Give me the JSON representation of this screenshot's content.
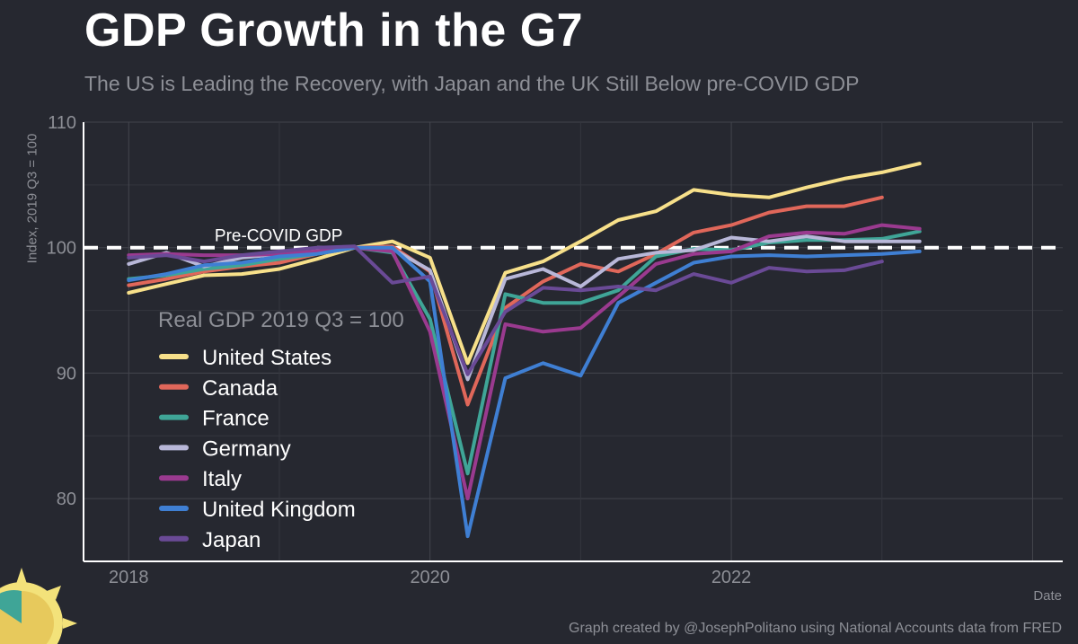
{
  "header": {
    "title": "GDP Growth in the G7",
    "subtitle": "The US is Leading the Recovery, with Japan and the UK Still Below pre-COVID GDP"
  },
  "footer": {
    "caption": "Graph created by @JosephPolitano using National Accounts data from FRED"
  },
  "chart_data": {
    "type": "line",
    "title": "GDP Growth in the G7",
    "subtitle": "The US is Leading the Recovery, with Japan and the UK Still Below pre-COVID GDP",
    "xlabel": "Date",
    "ylabel": "Index, 2019 Q3 = 100",
    "xlim": [
      2017.7,
      2024.2
    ],
    "ylim": [
      75,
      110
    ],
    "x_ticks": [
      2018,
      2020,
      2022
    ],
    "y_ticks": [
      80,
      90,
      100,
      110
    ],
    "grid": true,
    "legend_title": "Real GDP 2019 Q3 = 100",
    "legend_position": "left-middle",
    "reference_line": {
      "y": 100,
      "label": "Pre-COVID GDP",
      "style": "dashed",
      "color": "#ffffff"
    },
    "x": [
      2018.0,
      2018.25,
      2018.5,
      2018.75,
      2019.0,
      2019.25,
      2019.5,
      2019.75,
      2020.0,
      2020.25,
      2020.5,
      2020.75,
      2021.0,
      2021.25,
      2021.5,
      2021.75,
      2022.0,
      2022.25,
      2022.5,
      2022.75,
      2023.0,
      2023.25
    ],
    "series": [
      {
        "name": "United States",
        "color": "#f7e08a",
        "values": [
          96.4,
          97.1,
          97.8,
          97.9,
          98.3,
          99.1,
          100.0,
          100.5,
          99.2,
          90.8,
          98.0,
          98.9,
          100.5,
          102.2,
          102.9,
          104.6,
          104.2,
          104.0,
          104.8,
          105.5,
          106.0,
          106.7
        ]
      },
      {
        "name": "Canada",
        "color": "#e0675a",
        "values": [
          97.0,
          97.5,
          98.1,
          98.5,
          98.8,
          99.5,
          100.0,
          100.1,
          98.1,
          87.5,
          95.2,
          97.3,
          98.7,
          98.1,
          99.5,
          101.2,
          101.8,
          102.8,
          103.3,
          103.3,
          104.0,
          null
        ]
      },
      {
        "name": "France",
        "color": "#3fa597",
        "values": [
          97.5,
          97.8,
          98.3,
          98.6,
          99.1,
          99.5,
          100.0,
          99.6,
          94.3,
          82.0,
          96.3,
          95.6,
          95.6,
          96.6,
          99.3,
          99.9,
          99.8,
          100.4,
          100.6,
          100.6,
          100.7,
          101.3
        ]
      },
      {
        "name": "Germany",
        "color": "#b8b7d8",
        "values": [
          98.7,
          99.6,
          98.5,
          99.2,
          99.5,
          99.8,
          100.0,
          99.9,
          98.2,
          89.5,
          97.5,
          98.3,
          96.9,
          99.1,
          99.6,
          99.8,
          100.8,
          100.5,
          100.9,
          100.5,
          100.5,
          100.5
        ]
      },
      {
        "name": "Italy",
        "color": "#9a3a8f",
        "values": [
          99.4,
          99.5,
          99.4,
          99.4,
          99.5,
          99.7,
          100.0,
          99.7,
          93.3,
          80.0,
          93.9,
          93.3,
          93.6,
          96.1,
          98.7,
          99.5,
          99.7,
          100.9,
          101.2,
          101.1,
          101.8,
          101.5
        ]
      },
      {
        "name": "United Kingdom",
        "color": "#3f7fd3",
        "values": [
          97.4,
          97.9,
          98.6,
          98.8,
          99.3,
          99.5,
          100.0,
          100.0,
          97.3,
          77.0,
          89.6,
          90.8,
          89.8,
          95.6,
          97.2,
          98.8,
          99.3,
          99.4,
          99.3,
          99.4,
          99.5,
          99.7
        ]
      },
      {
        "name": "Japan",
        "color": "#6a4a96",
        "values": [
          99.2,
          99.4,
          98.9,
          99.4,
          99.7,
          100.0,
          100.1,
          97.2,
          97.7,
          89.9,
          94.9,
          96.8,
          96.6,
          96.9,
          96.6,
          97.9,
          97.2,
          98.4,
          98.1,
          98.2,
          98.9,
          null
        ]
      }
    ]
  },
  "decoration": {
    "sun_icon": "sun-icon"
  }
}
